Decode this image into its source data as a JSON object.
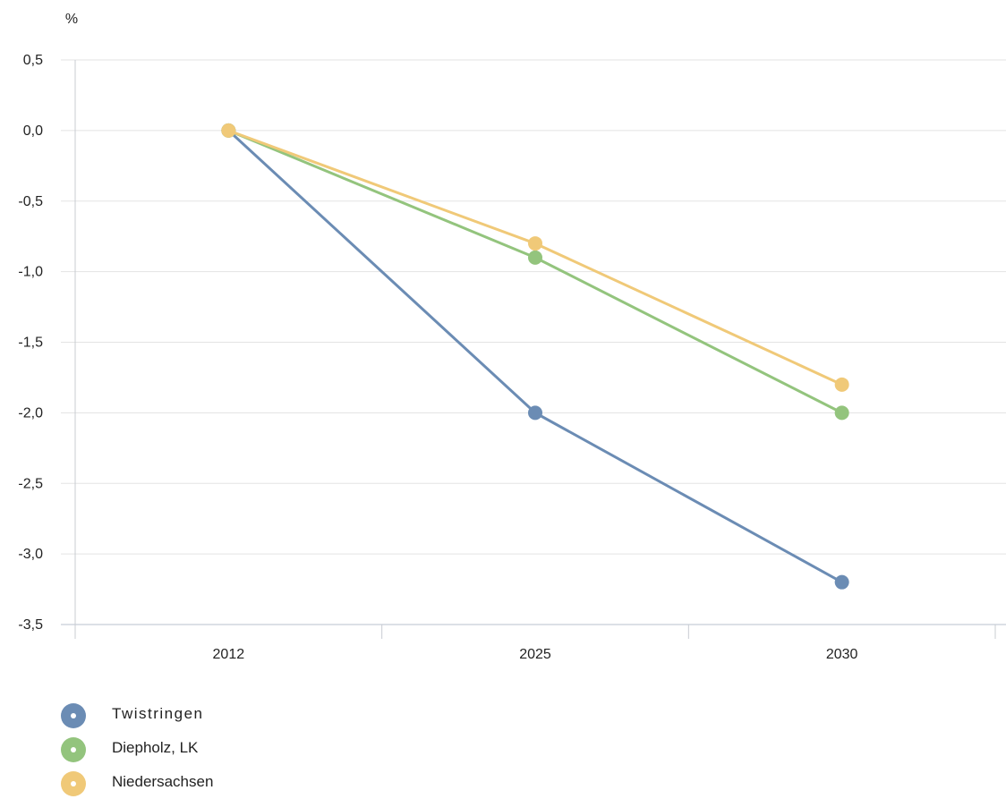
{
  "chart_data": {
    "type": "line",
    "ylabel": "%",
    "categories": [
      "2012",
      "2025",
      "2030"
    ],
    "ylim": [
      -3.5,
      0.5
    ],
    "yticks": [
      "0,5",
      "0,0",
      "-0,5",
      "-1,0",
      "-1,5",
      "-2,0",
      "-2,5",
      "-3,0",
      "-3,5"
    ],
    "series": [
      {
        "name": "Twistringen",
        "color": "#6b8cb4",
        "values": [
          0.0,
          -2.0,
          -3.2
        ]
      },
      {
        "name": "Diepholz, LK",
        "color": "#93c47d",
        "values": [
          0.0,
          -0.9,
          -2.0
        ]
      },
      {
        "name": "Niedersachsen",
        "color": "#f0c978",
        "values": [
          0.0,
          -0.8,
          -1.8
        ]
      }
    ],
    "grid": true,
    "legend_position": "bottom-left"
  }
}
